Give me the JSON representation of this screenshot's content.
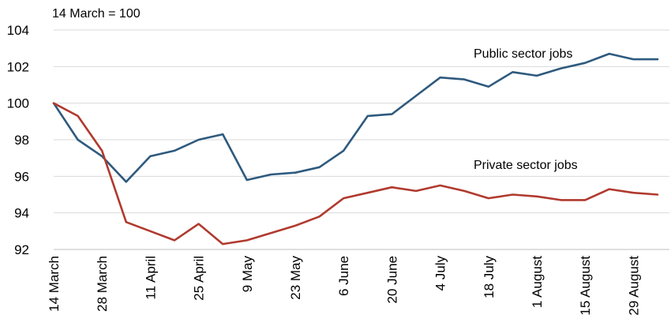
{
  "chart_data": {
    "type": "line",
    "title": "",
    "index_note": "14 March = 100",
    "xlabel": "",
    "ylabel": "",
    "ylim": [
      92,
      104
    ],
    "yticks": [
      92,
      94,
      96,
      98,
      100,
      102,
      104
    ],
    "grid": true,
    "x": [
      "14 March",
      "21 March",
      "28 March",
      "4 April",
      "11 April",
      "18 April",
      "25 April",
      "2 May",
      "9 May",
      "16 May",
      "23 May",
      "30 May",
      "6 June",
      "13 June",
      "20 June",
      "27 June",
      "4 July",
      "11 July",
      "18 July",
      "25 July",
      "1 August",
      "8 August",
      "15 August",
      "22 August",
      "29 August",
      "5 September"
    ],
    "x_tick_labels": [
      "14 March",
      "28 March",
      "11 April",
      "25 April",
      "9 May",
      "23 May",
      "6 June",
      "20 June",
      "4 July",
      "18 July",
      "1 August",
      "15 August",
      "29 August"
    ],
    "series": [
      {
        "name": "Public sector jobs",
        "color": "#2e5a7e",
        "values": [
          100,
          98.0,
          97.1,
          95.7,
          97.1,
          97.4,
          98.0,
          98.3,
          95.8,
          96.1,
          96.2,
          96.5,
          97.4,
          99.3,
          99.4,
          100.4,
          101.4,
          101.3,
          100.9,
          101.7,
          101.5,
          101.9,
          102.2,
          102.7,
          102.4,
          102.4
        ]
      },
      {
        "name": "Private sector jobs",
        "color": "#b03a2e",
        "values": [
          100,
          99.3,
          97.4,
          93.5,
          93.0,
          92.5,
          93.4,
          92.3,
          92.5,
          92.9,
          93.3,
          93.8,
          94.8,
          95.1,
          95.4,
          95.2,
          95.5,
          95.2,
          94.8,
          95.0,
          94.9,
          94.7,
          94.7,
          95.3,
          95.1,
          95.0
        ]
      }
    ]
  }
}
